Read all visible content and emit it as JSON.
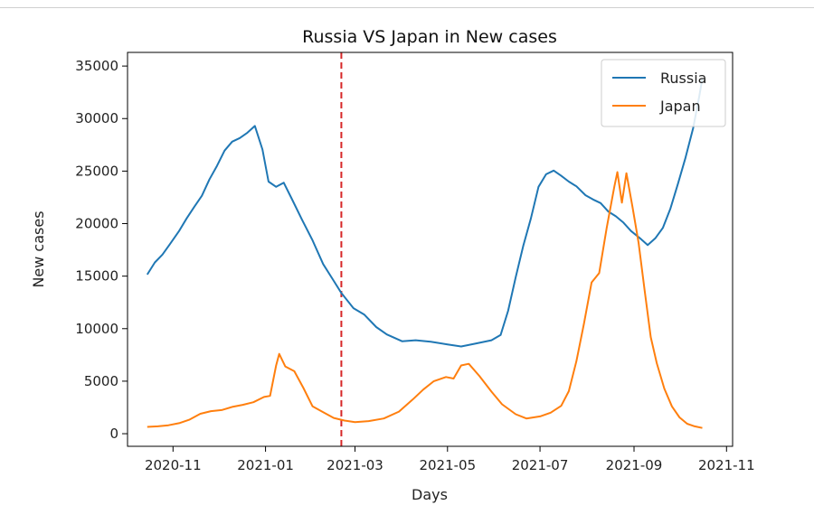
{
  "chart_data": {
    "type": "line",
    "title": "Russia VS Japan in New cases",
    "xlabel": "Days",
    "ylabel": "New cases",
    "xlim": [
      "2020-10-02",
      "2021-11-05"
    ],
    "ylim": [
      -1200,
      36300
    ],
    "x_ticks": [
      "2020-11-01",
      "2021-01-01",
      "2021-03-01",
      "2021-05-01",
      "2021-07-01",
      "2021-09-01",
      "2021-11-01"
    ],
    "x_tick_labels": [
      "2020-11",
      "2021-01",
      "2021-03",
      "2021-05",
      "2021-07",
      "2021-09",
      "2021-11"
    ],
    "y_ticks": [
      0,
      5000,
      10000,
      15000,
      20000,
      25000,
      30000,
      35000
    ],
    "y_tick_labels": [
      "0",
      "5000",
      "10000",
      "15000",
      "20000",
      "25000",
      "30000",
      "35000"
    ],
    "grid": false,
    "legend_position": "top-right",
    "vline": {
      "x": "2021-02-20",
      "color": "#d62728",
      "style": "dashed"
    },
    "series": [
      {
        "name": "Russia",
        "color": "#1f77b4",
        "points": [
          [
            "2020-10-15",
            15150
          ],
          [
            "2020-10-20",
            16300
          ],
          [
            "2020-10-25",
            17050
          ],
          [
            "2020-10-30",
            18050
          ],
          [
            "2020-11-05",
            19300
          ],
          [
            "2020-11-10",
            20500
          ],
          [
            "2020-11-15",
            21600
          ],
          [
            "2020-11-20",
            22650
          ],
          [
            "2020-11-25",
            24200
          ],
          [
            "2020-11-30",
            25500
          ],
          [
            "2020-12-05",
            26950
          ],
          [
            "2020-12-10",
            27800
          ],
          [
            "2020-12-15",
            28150
          ],
          [
            "2020-12-20",
            28650
          ],
          [
            "2020-12-25",
            29300
          ],
          [
            "2020-12-30",
            27050
          ],
          [
            "2021-01-03",
            24000
          ],
          [
            "2021-01-08",
            23500
          ],
          [
            "2021-01-13",
            23900
          ],
          [
            "2021-01-18",
            22450
          ],
          [
            "2021-01-25",
            20400
          ],
          [
            "2021-02-01",
            18400
          ],
          [
            "2021-02-08",
            16150
          ],
          [
            "2021-02-15",
            14550
          ],
          [
            "2021-02-20",
            13400
          ],
          [
            "2021-02-28",
            11950
          ],
          [
            "2021-03-07",
            11350
          ],
          [
            "2021-03-15",
            10150
          ],
          [
            "2021-03-22",
            9450
          ],
          [
            "2021-04-01",
            8800
          ],
          [
            "2021-04-10",
            8900
          ],
          [
            "2021-04-20",
            8750
          ],
          [
            "2021-05-01",
            8500
          ],
          [
            "2021-05-10",
            8300
          ],
          [
            "2021-05-20",
            8600
          ],
          [
            "2021-05-30",
            8900
          ],
          [
            "2021-06-05",
            9400
          ],
          [
            "2021-06-10",
            11700
          ],
          [
            "2021-06-15",
            14900
          ],
          [
            "2021-06-20",
            17900
          ],
          [
            "2021-06-25",
            20500
          ],
          [
            "2021-06-30",
            23500
          ],
          [
            "2021-07-05",
            24700
          ],
          [
            "2021-07-10",
            25050
          ],
          [
            "2021-07-15",
            24550
          ],
          [
            "2021-07-20",
            24000
          ],
          [
            "2021-07-25",
            23550
          ],
          [
            "2021-07-31",
            22700
          ],
          [
            "2021-08-05",
            22300
          ],
          [
            "2021-08-10",
            21950
          ],
          [
            "2021-08-15",
            21150
          ],
          [
            "2021-08-20",
            20700
          ],
          [
            "2021-08-25",
            20100
          ],
          [
            "2021-08-30",
            19300
          ],
          [
            "2021-09-05",
            18600
          ],
          [
            "2021-09-10",
            17950
          ],
          [
            "2021-09-15",
            18600
          ],
          [
            "2021-09-20",
            19600
          ],
          [
            "2021-09-25",
            21450
          ],
          [
            "2021-09-30",
            23800
          ],
          [
            "2021-10-05",
            26300
          ],
          [
            "2021-10-10",
            29100
          ],
          [
            "2021-10-14",
            32100
          ],
          [
            "2021-10-16",
            33800
          ]
        ]
      },
      {
        "name": "Japan",
        "color": "#ff7f0e",
        "points": [
          [
            "2020-10-15",
            650
          ],
          [
            "2020-10-22",
            700
          ],
          [
            "2020-10-29",
            800
          ],
          [
            "2020-11-05",
            1000
          ],
          [
            "2020-11-12",
            1350
          ],
          [
            "2020-11-19",
            1900
          ],
          [
            "2020-11-26",
            2150
          ],
          [
            "2020-12-03",
            2250
          ],
          [
            "2020-12-10",
            2550
          ],
          [
            "2020-12-17",
            2750
          ],
          [
            "2020-12-24",
            3000
          ],
          [
            "2020-12-31",
            3500
          ],
          [
            "2021-01-04",
            3600
          ],
          [
            "2021-01-08",
            6500
          ],
          [
            "2021-01-10",
            7600
          ],
          [
            "2021-01-14",
            6400
          ],
          [
            "2021-01-20",
            5950
          ],
          [
            "2021-01-26",
            4350
          ],
          [
            "2021-02-01",
            2600
          ],
          [
            "2021-02-08",
            2050
          ],
          [
            "2021-02-15",
            1500
          ],
          [
            "2021-02-22",
            1250
          ],
          [
            "2021-03-01",
            1100
          ],
          [
            "2021-03-10",
            1200
          ],
          [
            "2021-03-20",
            1450
          ],
          [
            "2021-03-30",
            2100
          ],
          [
            "2021-04-08",
            3250
          ],
          [
            "2021-04-15",
            4200
          ],
          [
            "2021-04-22",
            5000
          ],
          [
            "2021-04-30",
            5400
          ],
          [
            "2021-05-05",
            5250
          ],
          [
            "2021-05-10",
            6500
          ],
          [
            "2021-05-15",
            6650
          ],
          [
            "2021-05-22",
            5500
          ],
          [
            "2021-05-30",
            4000
          ],
          [
            "2021-06-06",
            2800
          ],
          [
            "2021-06-15",
            1850
          ],
          [
            "2021-06-22",
            1450
          ],
          [
            "2021-07-01",
            1650
          ],
          [
            "2021-07-08",
            2000
          ],
          [
            "2021-07-15",
            2650
          ],
          [
            "2021-07-20",
            4050
          ],
          [
            "2021-07-25",
            6900
          ],
          [
            "2021-07-30",
            10500
          ],
          [
            "2021-08-04",
            14400
          ],
          [
            "2021-08-09",
            15300
          ],
          [
            "2021-08-14",
            19600
          ],
          [
            "2021-08-19",
            23500
          ],
          [
            "2021-08-21",
            24900
          ],
          [
            "2021-08-24",
            22000
          ],
          [
            "2021-08-27",
            24800
          ],
          [
            "2021-08-31",
            21600
          ],
          [
            "2021-09-04",
            18200
          ],
          [
            "2021-09-08",
            13600
          ],
          [
            "2021-09-12",
            9200
          ],
          [
            "2021-09-16",
            6700
          ],
          [
            "2021-09-21",
            4300
          ],
          [
            "2021-09-26",
            2600
          ],
          [
            "2021-10-01",
            1550
          ],
          [
            "2021-10-06",
            950
          ],
          [
            "2021-10-11",
            700
          ],
          [
            "2021-10-16",
            550
          ]
        ]
      }
    ]
  }
}
